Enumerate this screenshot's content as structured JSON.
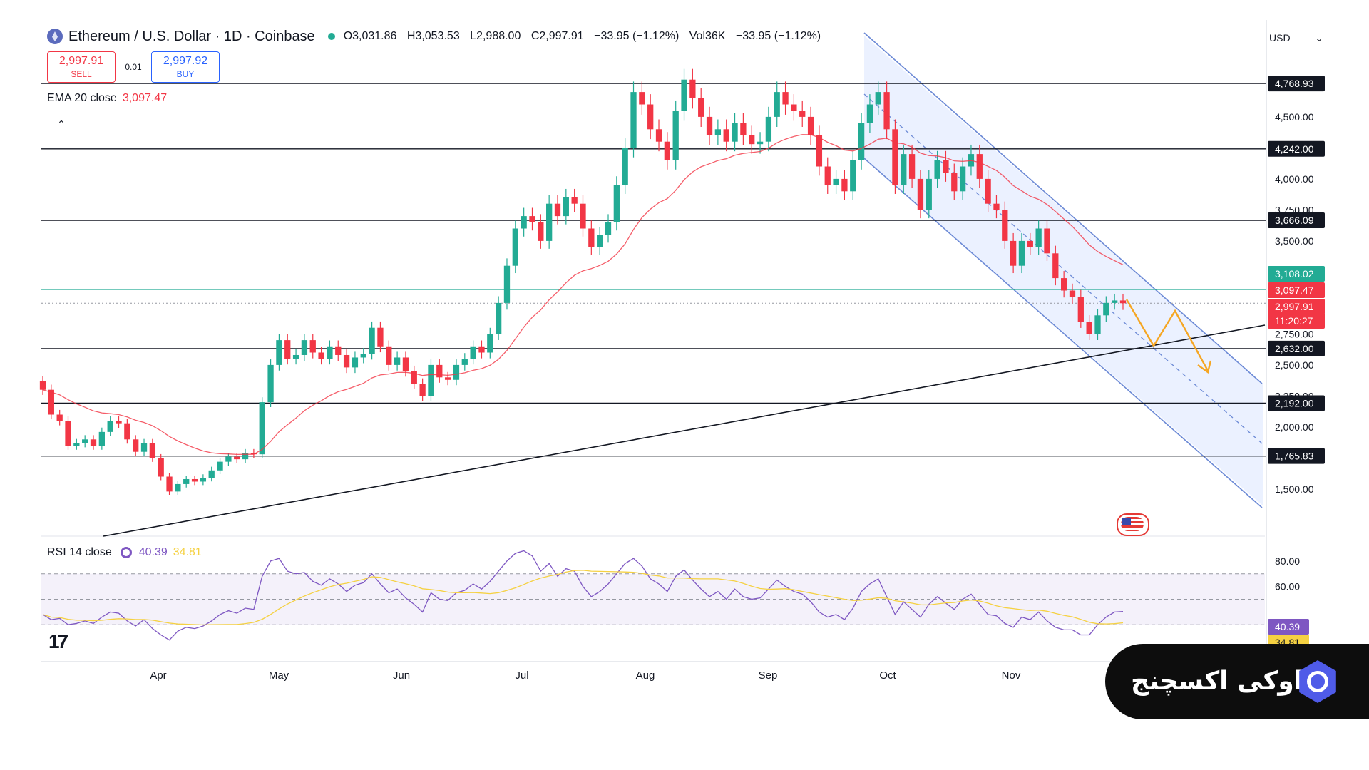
{
  "header": {
    "title": "Ethereum / U.S. Dollar · 1D · Coinbase",
    "open": "O3,031.86",
    "high": "H3,053.53",
    "low": "L2,988.00",
    "close": "C2,997.91",
    "change": "−33.95 (−1.12%)",
    "volume": "Vol36K",
    "vol_change": "−33.95 (−1.12%)"
  },
  "trade": {
    "sell_price": "2,997.91",
    "sell_label": "SELL",
    "spread": "0.01",
    "buy_price": "2,997.92",
    "buy_label": "BUY"
  },
  "ema": {
    "label": "EMA 20 close",
    "value": "3,097.47"
  },
  "rsi": {
    "label": "RSI 14 close",
    "value": "40.39",
    "ma_value": "34.81"
  },
  "currency": "USD",
  "badge": {
    "text": "اوکی اکسچنج"
  },
  "chart_data": {
    "type": "line",
    "price_axis": {
      "ticks": [
        {
          "value": 4500,
          "label": "4,500.00"
        },
        {
          "value": 4000,
          "label": "4,000.00"
        },
        {
          "value": 3750,
          "label": "3,750.00"
        },
        {
          "value": 3500,
          "label": "3,500.00"
        },
        {
          "value": 2750,
          "label": "2,750.00"
        },
        {
          "value": 2500,
          "label": "2,500.00"
        },
        {
          "value": 2250,
          "label": "2,250.00"
        },
        {
          "value": 2000,
          "label": "2,000.00"
        },
        {
          "value": 1500,
          "label": "1,500.00"
        }
      ]
    },
    "levels": [
      {
        "value": 4768.93,
        "label": "4,768.93"
      },
      {
        "value": 4242.0,
        "label": "4,242.00"
      },
      {
        "value": 3666.09,
        "label": "3,666.09"
      },
      {
        "value": 2632.0,
        "label": "2,632.00"
      },
      {
        "value": 2192.0,
        "label": "2,192.00"
      },
      {
        "value": 1765.83,
        "label": "1,765.83"
      }
    ],
    "price_labels": [
      {
        "value": 3108.02,
        "label": "3,108.02",
        "color": "#22ab94"
      },
      {
        "value": 3097.47,
        "label": "3,097.47",
        "color": "#f23645"
      },
      {
        "value": 2997.91,
        "label": "2,997.91",
        "color": "#f23645"
      }
    ],
    "countdown": "11:20:27",
    "months": [
      "Apr",
      "May",
      "Jun",
      "Jul",
      "Aug",
      "Sep",
      "Oct",
      "Nov"
    ],
    "close_series": [
      2300,
      2100,
      2050,
      1850,
      1870,
      1900,
      1850,
      1960,
      2050,
      2030,
      1900,
      1800,
      1870,
      1750,
      1600,
      1480,
      1540,
      1580,
      1560,
      1590,
      1650,
      1720,
      1760,
      1740,
      1790,
      1780,
      2200,
      2500,
      2700,
      2550,
      2580,
      2700,
      2600,
      2550,
      2650,
      2580,
      2480,
      2560,
      2590,
      2800,
      2650,
      2500,
      2560,
      2450,
      2350,
      2250,
      2500,
      2400,
      2380,
      2500,
      2550,
      2650,
      2600,
      2750,
      3000,
      3300,
      3600,
      3700,
      3650,
      3500,
      3800,
      3700,
      3850,
      3800,
      3600,
      3450,
      3550,
      3650,
      3950,
      4250,
      4700,
      4600,
      4400,
      4300,
      4150,
      4550,
      4800,
      4650,
      4500,
      4350,
      4400,
      4300,
      4450,
      4350,
      4280,
      4300,
      4500,
      4700,
      4600,
      4550,
      4500,
      4350,
      4100,
      3950,
      4000,
      3900,
      4150,
      4450,
      4600,
      4700,
      4400,
      3950,
      4200,
      4000,
      3750,
      4000,
      4150,
      4050,
      3900,
      4100,
      4200,
      4000,
      3800,
      3750,
      3500,
      3300,
      3500,
      3450,
      3600,
      3400,
      3200,
      3100,
      3050,
      2850,
      2750,
      2900,
      3000,
      3020,
      2997.91
    ],
    "rsi_axis": {
      "ticks": [
        {
          "value": 80,
          "label": "80.00"
        },
        {
          "value": 60,
          "label": "60.00"
        },
        {
          "value": 40.39,
          "label": "40.39"
        },
        {
          "value": 34.81,
          "label": "34.81"
        }
      ]
    },
    "rsi_series": [
      38,
      34,
      35,
      30,
      31,
      33,
      31,
      36,
      40,
      39,
      33,
      29,
      34,
      27,
      22,
      18,
      25,
      28,
      27,
      29,
      33,
      38,
      41,
      39,
      43,
      42,
      68,
      80,
      82,
      72,
      70,
      71,
      64,
      61,
      66,
      62,
      56,
      61,
      63,
      70,
      62,
      55,
      58,
      51,
      46,
      40,
      55,
      50,
      49,
      55,
      57,
      62,
      58,
      64,
      72,
      80,
      86,
      88,
      84,
      72,
      78,
      68,
      74,
      72,
      60,
      52,
      56,
      62,
      70,
      78,
      82,
      76,
      66,
      62,
      56,
      68,
      73,
      65,
      58,
      52,
      56,
      50,
      58,
      52,
      50,
      51,
      58,
      65,
      60,
      56,
      54,
      48,
      40,
      36,
      38,
      34,
      43,
      56,
      62,
      66,
      52,
      38,
      48,
      42,
      36,
      46,
      52,
      47,
      42,
      50,
      54,
      46,
      38,
      37,
      31,
      28,
      36,
      34,
      40,
      33,
      28,
      26,
      26,
      22,
      22,
      30,
      36,
      40,
      40.39
    ]
  }
}
